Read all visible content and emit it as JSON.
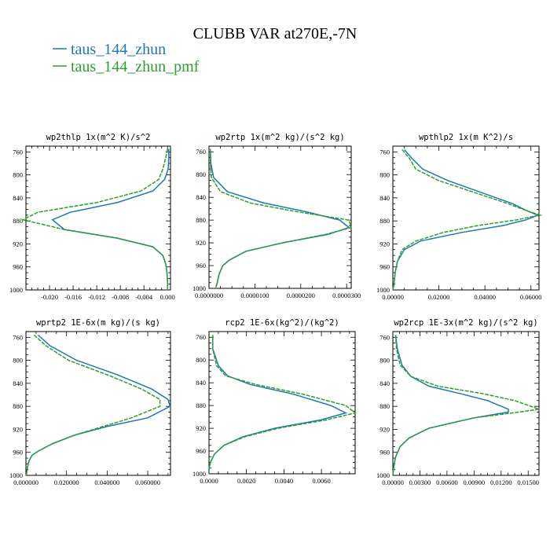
{
  "title": "CLUBB VAR at270E,-7N",
  "colors": {
    "series1": "#1f77b4",
    "series2": "#2ca02c"
  },
  "chart_data": [
    {
      "type": "line",
      "title": "wp2thlp   1x(m^2 K)/s^2",
      "ylim": [
        1000,
        750
      ],
      "xlim": [
        -0.024,
        0.0005
      ],
      "yticks": [
        760,
        800,
        840,
        880,
        920,
        960,
        1000
      ],
      "xticks": [
        -0.02,
        -0.016,
        -0.012,
        -0.008,
        -0.004,
        0.0
      ],
      "xtick_labels": [
        "-0.020",
        "-0.016",
        "-0.012",
        "-0.008",
        "-0.004",
        "0.000"
      ],
      "y": [
        755,
        770,
        790,
        808,
        828,
        848,
        865,
        878,
        895,
        910,
        925,
        940,
        955,
        970,
        985,
        1000
      ],
      "series": [
        {
          "name": "taus_144_zhun",
          "values": [
            0.0002,
            0.0002,
            0.0001,
            -0.0005,
            -0.0025,
            -0.0085,
            -0.0165,
            -0.0195,
            -0.0175,
            -0.0085,
            -0.0025,
            -0.0008,
            -0.0003,
            -0.0001,
            0.0,
            0.0
          ]
        },
        {
          "name": "taus_144_zhun_pmf",
          "values": [
            0.0,
            -0.0003,
            -0.0008,
            -0.0015,
            -0.0045,
            -0.012,
            -0.022,
            -0.0245,
            -0.0175,
            -0.0085,
            -0.0025,
            -0.0008,
            -0.0003,
            -0.0001,
            0.0,
            0.0
          ]
        }
      ]
    },
    {
      "type": "line",
      "title": "wp2rtp   1x(m^2 kg)/(s^2 kg)",
      "ylim": [
        1000,
        750
      ],
      "xlim": [
        0,
        3.1e-05
      ],
      "yticks": [
        760,
        800,
        840,
        880,
        920,
        960,
        1000
      ],
      "xticks": [
        0,
        1e-05,
        2e-05,
        3e-05
      ],
      "xtick_labels": [
        "0.0000000",
        "0.0000100",
        "0.0000200",
        "0.0000300"
      ],
      "y": [
        755,
        780,
        805,
        830,
        850,
        865,
        880,
        893,
        905,
        920,
        935,
        950,
        960,
        975,
        990,
        998
      ],
      "series": [
        {
          "name": "taus_144_zhun",
          "values": [
            3e-07,
            4e-07,
            1e-06,
            4e-06,
            1.2e-05,
            2.1e-05,
            2.85e-05,
            3.05e-05,
            2.6e-05,
            1.6e-05,
            8e-06,
            4.5e-06,
            3e-06,
            2.2e-06,
            1.8e-06,
            1.5e-06
          ]
        },
        {
          "name": "taus_144_zhun_pmf",
          "values": [
            3e-07,
            3e-07,
            5e-07,
            2.5e-06,
            9e-06,
            1.9e-05,
            3.05e-05,
            3.1e-05,
            2.55e-05,
            1.6e-05,
            8e-06,
            4.5e-06,
            3e-06,
            2.2e-06,
            1.8e-06,
            1.5e-06
          ]
        }
      ]
    },
    {
      "type": "line",
      "title": "wpthlp2   1x(m K^2)/s",
      "ylim": [
        1000,
        750
      ],
      "xlim": [
        0,
        0.0635
      ],
      "yticks": [
        760,
        800,
        840,
        880,
        920,
        960,
        1000
      ],
      "xticks": [
        0,
        0.02,
        0.04,
        0.06
      ],
      "xtick_labels": [
        "0.00000",
        "0.02000",
        "0.04000",
        "0.06000"
      ],
      "y": [
        756,
        770,
        790,
        810,
        830,
        850,
        862,
        870,
        878,
        888,
        900,
        915,
        930,
        950,
        970,
        990,
        1000
      ],
      "series": [
        {
          "name": "taus_144_zhun",
          "values": [
            0.005,
            0.008,
            0.013,
            0.024,
            0.038,
            0.052,
            0.058,
            0.063,
            0.058,
            0.048,
            0.03,
            0.012,
            0.005,
            0.002,
            0.001,
            0.0005,
            0.0
          ]
        },
        {
          "name": "taus_144_zhun_pmf",
          "values": [
            0.004,
            0.007,
            0.01,
            0.02,
            0.035,
            0.05,
            0.058,
            0.064,
            0.054,
            0.037,
            0.022,
            0.01,
            0.004,
            0.002,
            0.001,
            0.0005,
            0.0
          ]
        }
      ]
    },
    {
      "type": "line",
      "title": "wprtp2   1E-6x(m kg)/(s kg)",
      "ylim": [
        1000,
        750
      ],
      "xlim": [
        0,
        0.0712
      ],
      "yticks": [
        760,
        800,
        840,
        880,
        920,
        960,
        1000
      ],
      "xticks": [
        0,
        0.02,
        0.04,
        0.06
      ],
      "xtick_labels": [
        "0.000000",
        "0.020000",
        "0.040000",
        "0.060000"
      ],
      "y": [
        756,
        775,
        800,
        825,
        850,
        868,
        880,
        900,
        915,
        930,
        945,
        958,
        965,
        975,
        985,
        1000
      ],
      "series": [
        {
          "name": "taus_144_zhun",
          "values": [
            0.006,
            0.012,
            0.025,
            0.045,
            0.062,
            0.07,
            0.071,
            0.06,
            0.04,
            0.024,
            0.013,
            0.006,
            0.003,
            0.0015,
            0.0008,
            0.0002
          ]
        },
        {
          "name": "taus_144_zhun_pmf",
          "values": [
            0.004,
            0.01,
            0.021,
            0.04,
            0.057,
            0.066,
            0.066,
            0.052,
            0.038,
            0.024,
            0.013,
            0.006,
            0.003,
            0.0015,
            0.0008,
            0.0002
          ]
        }
      ]
    },
    {
      "type": "line",
      "title": "rcp2   1E-6x(kg^2)/(kg^2)",
      "ylim": [
        1000,
        750
      ],
      "xlim": [
        0,
        0.0078
      ],
      "yticks": [
        760,
        800,
        840,
        880,
        920,
        960,
        1000
      ],
      "xticks": [
        0,
        0.002,
        0.004,
        0.006
      ],
      "xtick_labels": [
        "0.0000",
        "0.0020",
        "0.0040",
        "0.0060"
      ],
      "y": [
        756,
        780,
        810,
        828,
        843,
        860,
        880,
        893,
        905,
        920,
        935,
        950,
        965,
        978,
        990,
        1000
      ],
      "series": [
        {
          "name": "taus_144_zhun",
          "values": [
            0.0002,
            0.0002,
            0.0005,
            0.001,
            0.0022,
            0.0045,
            0.0065,
            0.0073,
            0.006,
            0.0035,
            0.0018,
            0.0008,
            0.0003,
            0.0001,
            0.0,
            0.0
          ]
        },
        {
          "name": "taus_144_zhun_pmf",
          "values": [
            0.0002,
            0.0002,
            0.0004,
            0.0009,
            0.0025,
            0.005,
            0.0073,
            0.0078,
            0.0063,
            0.0037,
            0.0019,
            0.0008,
            0.0003,
            0.0001,
            0.0,
            0.0
          ]
        }
      ]
    },
    {
      "type": "line",
      "title": "wp2rcp   1E-3x(m^2 kg)/(s^2 kg)",
      "ylim": [
        1000,
        750
      ],
      "xlim": [
        0,
        0.0162
      ],
      "yticks": [
        760,
        800,
        840,
        880,
        920,
        960,
        1000
      ],
      "xticks": [
        0,
        0.003,
        0.006,
        0.009,
        0.012,
        0.015
      ],
      "xtick_labels": [
        "0.00000",
        "0.00300",
        "0.00600",
        "0.00900",
        "0.01200",
        "0.01500"
      ],
      "y": [
        756,
        780,
        808,
        828,
        845,
        858,
        870,
        885,
        890,
        900,
        918,
        935,
        950,
        968,
        985,
        1000
      ],
      "series": [
        {
          "name": "taus_144_zhun",
          "values": [
            0.0003,
            0.0005,
            0.001,
            0.002,
            0.004,
            0.0075,
            0.0105,
            0.0128,
            0.0128,
            0.009,
            0.004,
            0.0018,
            0.0008,
            0.0003,
            0.0001,
            0.0
          ]
        },
        {
          "name": "taus_144_zhun_pmf",
          "values": [
            0.0003,
            0.0004,
            0.0008,
            0.002,
            0.005,
            0.01,
            0.0135,
            0.0162,
            0.014,
            0.009,
            0.004,
            0.0018,
            0.0008,
            0.0003,
            0.0001,
            0.0
          ]
        }
      ]
    }
  ]
}
